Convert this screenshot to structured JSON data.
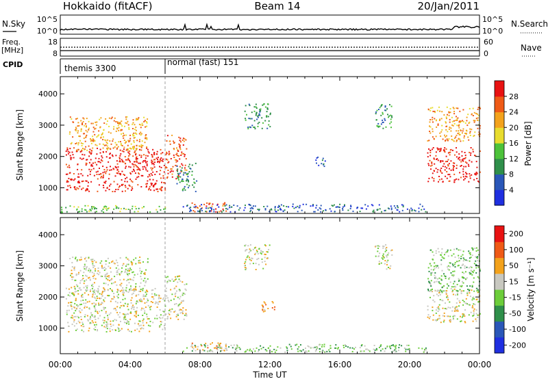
{
  "header": {
    "station": "Hokkaido (fitACF)",
    "beam": "Beam 14",
    "date": "20/Jan/2011"
  },
  "strip_labels": {
    "nsky": "N.Sky",
    "nsearch": "N.Search",
    "freq": "Freq.",
    "freq_unit": "[MHz]",
    "nave": "Nave",
    "cpid": "CPID"
  },
  "strip_ticks": {
    "nsky_left": [
      "10^5",
      "10^0"
    ],
    "nsky_right": [
      "10^5",
      "10^0"
    ],
    "freq_left": [
      "18",
      "8"
    ],
    "nave_right": [
      "60",
      "0"
    ]
  },
  "cpid_modes": [
    {
      "label": "themis 3300",
      "start_hour": 0
    },
    {
      "label": "normal (fast) 151",
      "start_hour": 6
    }
  ],
  "chart_data": [
    {
      "type": "heatmap",
      "name": "power",
      "ylabel": "Slant Range [km]",
      "yticks": [
        1000,
        2000,
        3000,
        4000
      ],
      "ylim": [
        180,
        4550
      ],
      "xlabel": "Time UT",
      "xticks": [
        "00:00",
        "04:00",
        "08:00",
        "12:00",
        "16:00",
        "20:00",
        "00:00"
      ],
      "xlim_hours": [
        0,
        24
      ],
      "colorbar": {
        "label": "Power [dB]",
        "ticks": [
          "4",
          "8",
          "12",
          "16",
          "20",
          "24",
          "28"
        ],
        "colors": [
          "#1f2fe0",
          "#2a57b8",
          "#2f8f4a",
          "#4cc23a",
          "#e8dc2e",
          "#f3a21c",
          "#ef5a16",
          "#e81212"
        ]
      },
      "regions": [
        {
          "t0": 0.3,
          "t1": 6.0,
          "r0": 900,
          "r1": 2300,
          "level": 7
        },
        {
          "t0": 0.5,
          "t1": 5.0,
          "r0": 2200,
          "r1": 3300,
          "level": 5
        },
        {
          "t0": 6.0,
          "t1": 7.2,
          "r0": 1300,
          "r1": 2700,
          "level": 6
        },
        {
          "t0": 6.6,
          "t1": 7.8,
          "r0": 900,
          "r1": 1800,
          "level": 2
        },
        {
          "t0": 7.5,
          "t1": 9.5,
          "r0": 250,
          "r1": 550,
          "level": 6
        },
        {
          "t0": 7.0,
          "t1": 21.0,
          "r0": 250,
          "r1": 500,
          "level": 1
        },
        {
          "t0": 10.5,
          "t1": 12.0,
          "r0": 2900,
          "r1": 3700,
          "level": 2
        },
        {
          "t0": 14.5,
          "t1": 15.2,
          "r0": 1700,
          "r1": 2000,
          "level": 1
        },
        {
          "t0": 18.0,
          "t1": 19.0,
          "r0": 2900,
          "r1": 3700,
          "level": 2
        },
        {
          "t0": 21.0,
          "t1": 24.0,
          "r0": 1200,
          "r1": 2300,
          "level": 7
        },
        {
          "t0": 21.0,
          "t1": 24.0,
          "r0": 2500,
          "r1": 3600,
          "level": 5
        },
        {
          "t0": 0.0,
          "t1": 6.0,
          "r0": 230,
          "r1": 450,
          "level": 3
        }
      ]
    },
    {
      "type": "heatmap",
      "name": "velocity",
      "ylabel": "Slant Range [km]",
      "yticks": [
        1000,
        2000,
        3000,
        4000
      ],
      "ylim": [
        180,
        4550
      ],
      "xlabel": "Time UT",
      "xticks": [
        "00:00",
        "04:00",
        "08:00",
        "12:00",
        "16:00",
        "20:00",
        "00:00"
      ],
      "xlim_hours": [
        0,
        24
      ],
      "colorbar": {
        "label": "Velocity [m s⁻¹]",
        "ticks": [
          "200",
          "100",
          "50",
          "15",
          "-15",
          "-50",
          "-100",
          "-200"
        ],
        "colors": [
          "#1f2fe0",
          "#2a57b8",
          "#2f8f4a",
          "#6ccd3a",
          "#c8c8c0",
          "#f3a21c",
          "#ef5a16",
          "#e81212"
        ]
      },
      "regions": [
        {
          "t0": 0.3,
          "t1": 6.0,
          "r0": 900,
          "r1": 2300,
          "level": 4
        },
        {
          "t0": 0.5,
          "t1": 5.0,
          "r0": 2200,
          "r1": 3300,
          "level": 4
        },
        {
          "t0": 6.0,
          "t1": 7.2,
          "r0": 1300,
          "r1": 2700,
          "level": 4
        },
        {
          "t0": 7.5,
          "t1": 9.5,
          "r0": 250,
          "r1": 550,
          "level": 5
        },
        {
          "t0": 7.0,
          "t1": 21.0,
          "r0": 250,
          "r1": 500,
          "level": 3
        },
        {
          "t0": 10.5,
          "t1": 12.0,
          "r0": 2900,
          "r1": 3700,
          "level": 4
        },
        {
          "t0": 11.5,
          "t1": 12.3,
          "r0": 1500,
          "r1": 1900,
          "level": 5
        },
        {
          "t0": 18.0,
          "t1": 19.0,
          "r0": 2900,
          "r1": 3700,
          "level": 4
        },
        {
          "t0": 21.0,
          "t1": 24.0,
          "r0": 1200,
          "r1": 2300,
          "level": 4
        },
        {
          "t0": 21.0,
          "t1": 24.0,
          "r0": 2200,
          "r1": 3600,
          "level": 3
        }
      ]
    }
  ]
}
